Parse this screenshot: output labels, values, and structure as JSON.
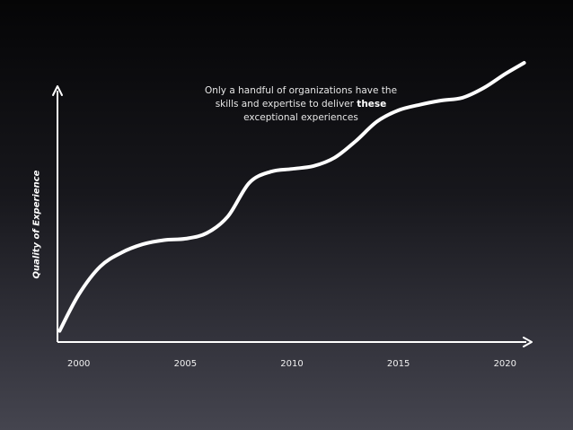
{
  "chart_data": {
    "type": "line",
    "title": "",
    "xlabel": "",
    "ylabel": "Quality of Experience",
    "xlim": [
      1999,
      2021
    ],
    "ylim": [
      0,
      100
    ],
    "x_ticks": [
      "2000",
      "2005",
      "2010",
      "2015",
      "2020"
    ],
    "grid": false,
    "series": [
      {
        "x": [
          1999.1,
          2000,
          2001,
          2002,
          2003,
          2004,
          2005,
          2006,
          2007,
          2008,
          2009,
          2010,
          2011,
          2012,
          2013,
          2014,
          2015,
          2016,
          2017,
          2018,
          2019,
          2020,
          2020.9
        ],
        "values": [
          4,
          17,
          27,
          32,
          35,
          36.5,
          37,
          39,
          45,
          57,
          61,
          62,
          63,
          66,
          72,
          79,
          83,
          85,
          86.5,
          87.5,
          91,
          96,
          100
        ]
      }
    ],
    "annotation": {
      "line1": "Only a handful of organizations have the",
      "line2_before": "skills and expertise to deliver ",
      "line2_bold": "these",
      "line3": "exceptional experiences"
    }
  }
}
